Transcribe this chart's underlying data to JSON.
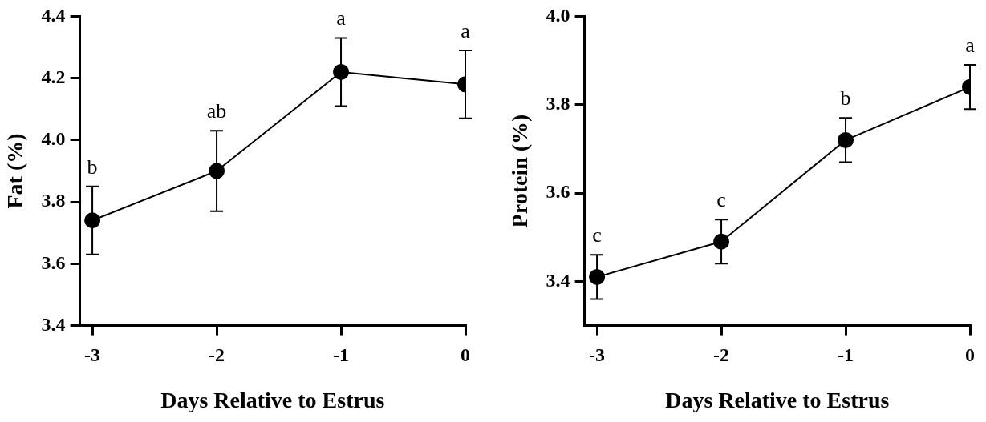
{
  "chart_data": [
    {
      "type": "line",
      "xlabel": "Days Relative to Estrus",
      "ylabel": "Fat (%)",
      "x": [
        -3,
        -2,
        -1,
        0
      ],
      "series": [
        {
          "color": "#000000",
          "values": [
            3.74,
            3.9,
            4.22,
            4.18
          ],
          "errors": [
            0.11,
            0.13,
            0.11,
            0.11
          ]
        }
      ],
      "xlim": [
        -3.1,
        0
      ],
      "xticks": [
        -3,
        -2,
        -1,
        0
      ],
      "ylim": [
        3.4,
        4.4
      ],
      "yticks": [
        {
          "value": 3.4,
          "label": "3.4"
        },
        {
          "value": 3.6,
          "label": "3.6"
        },
        {
          "value": 3.8,
          "label": "3.8"
        },
        {
          "value": 4.0,
          "label": "4.0"
        },
        {
          "value": 4.2,
          "label": "4.2"
        },
        {
          "value": 4.4,
          "label": "4.4"
        }
      ],
      "annotations": [
        {
          "text": "b",
          "x": -3,
          "y": 3.74
        },
        {
          "text": "ab",
          "x": -2,
          "y": 3.9
        },
        {
          "text": "a",
          "x": -1,
          "y": 4.22
        },
        {
          "text": "a",
          "x": 0,
          "y": 4.18
        }
      ],
      "grid": false,
      "legend": false,
      "marker": "circle",
      "line_style": "solid"
    },
    {
      "type": "line",
      "xlabel": "Days Relative to Estrus",
      "ylabel": "Protein (%)",
      "x": [
        -3,
        -2,
        -1,
        0
      ],
      "series": [
        {
          "color": "#000000",
          "values": [
            3.41,
            3.49,
            3.72,
            3.84
          ],
          "errors": [
            0.05,
            0.05,
            0.05,
            0.05
          ]
        }
      ],
      "xlim": [
        -3.1,
        0
      ],
      "xticks": [
        -3,
        -2,
        -1,
        0
      ],
      "ylim": [
        3.3,
        4.0
      ],
      "yticks": [
        {
          "value": 3.4,
          "label": "3.4"
        },
        {
          "value": 3.6,
          "label": "3.6"
        },
        {
          "value": 3.8,
          "label": "3.8"
        },
        {
          "value": 4.0,
          "label": "4.0"
        }
      ],
      "annotations": [
        {
          "text": "c",
          "x": -3,
          "y": 3.41
        },
        {
          "text": "c",
          "x": -2,
          "y": 3.49
        },
        {
          "text": "b",
          "x": -1,
          "y": 3.72
        },
        {
          "text": "a",
          "x": 0,
          "y": 3.84
        }
      ],
      "grid": false,
      "legend": false,
      "marker": "circle",
      "line_style": "solid"
    }
  ]
}
